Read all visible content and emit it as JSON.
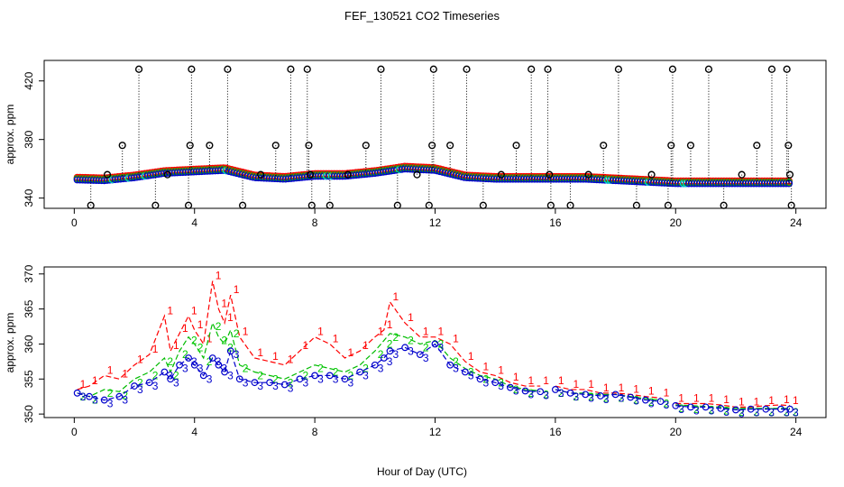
{
  "chart_data": {
    "title": "FEF_130521  CO2 Timeseries",
    "xlabel": "Hour of Day (UTC)",
    "x_ticks": [
      "0",
      "4",
      "8",
      "12",
      "16",
      "20",
      "24"
    ],
    "panels": [
      {
        "type": "scatter",
        "ylabel": "approx. ppm",
        "xlim": [
          -1,
          25
        ],
        "ylim": [
          333,
          434
        ],
        "y_ticks": [
          "340",
          "380",
          "420"
        ],
        "y_tick_values": [
          340,
          380,
          420
        ],
        "baseline_colors": [
          "#ff0000",
          "#00bb00",
          "#0000cc",
          "#00cccc"
        ],
        "baseline_hours": [
          0.1,
          1,
          2,
          3,
          4,
          5,
          6,
          7,
          8,
          9,
          10,
          11,
          12,
          13,
          14,
          15,
          16,
          17,
          18,
          19,
          20,
          21,
          22,
          23,
          23.8
        ],
        "baseline_ppm": [
          352.5,
          352,
          354,
          357,
          358,
          359,
          354,
          353,
          355,
          355,
          357,
          360,
          359,
          354,
          353,
          353,
          353,
          353,
          352,
          351,
          350,
          350,
          350,
          350,
          350
        ],
        "spike_series": {
          "name": "calibration spikes",
          "color": "#000000",
          "points": [
            {
              "x": 0.55,
              "y": 335
            },
            {
              "x": 1.1,
              "y": 356
            },
            {
              "x": 1.6,
              "y": 376
            },
            {
              "x": 2.15,
              "y": 428
            },
            {
              "x": 2.7,
              "y": 335
            },
            {
              "x": 3.1,
              "y": 356
            },
            {
              "x": 3.8,
              "y": 335
            },
            {
              "x": 3.85,
              "y": 376
            },
            {
              "x": 3.9,
              "y": 428
            },
            {
              "x": 4.5,
              "y": 376
            },
            {
              "x": 5.1,
              "y": 428
            },
            {
              "x": 5.6,
              "y": 335
            },
            {
              "x": 6.2,
              "y": 356
            },
            {
              "x": 6.7,
              "y": 376
            },
            {
              "x": 7.2,
              "y": 428
            },
            {
              "x": 7.75,
              "y": 428
            },
            {
              "x": 7.8,
              "y": 376
            },
            {
              "x": 7.85,
              "y": 356
            },
            {
              "x": 7.9,
              "y": 335
            },
            {
              "x": 8.5,
              "y": 335
            },
            {
              "x": 9.1,
              "y": 356
            },
            {
              "x": 9.7,
              "y": 376
            },
            {
              "x": 10.2,
              "y": 428
            },
            {
              "x": 10.75,
              "y": 335
            },
            {
              "x": 11.4,
              "y": 356
            },
            {
              "x": 11.8,
              "y": 335
            },
            {
              "x": 11.9,
              "y": 376
            },
            {
              "x": 11.95,
              "y": 428
            },
            {
              "x": 12.5,
              "y": 376
            },
            {
              "x": 13.05,
              "y": 428
            },
            {
              "x": 13.6,
              "y": 335
            },
            {
              "x": 14.2,
              "y": 356
            },
            {
              "x": 14.7,
              "y": 376
            },
            {
              "x": 15.2,
              "y": 428
            },
            {
              "x": 15.75,
              "y": 428
            },
            {
              "x": 15.8,
              "y": 356
            },
            {
              "x": 15.85,
              "y": 335
            },
            {
              "x": 16.5,
              "y": 335
            },
            {
              "x": 17.1,
              "y": 356
            },
            {
              "x": 17.6,
              "y": 376
            },
            {
              "x": 18.1,
              "y": 428
            },
            {
              "x": 18.7,
              "y": 335
            },
            {
              "x": 19.2,
              "y": 356
            },
            {
              "x": 19.75,
              "y": 335
            },
            {
              "x": 19.85,
              "y": 376
            },
            {
              "x": 19.9,
              "y": 428
            },
            {
              "x": 20.5,
              "y": 376
            },
            {
              "x": 21.1,
              "y": 428
            },
            {
              "x": 21.6,
              "y": 335
            },
            {
              "x": 22.2,
              "y": 356
            },
            {
              "x": 22.7,
              "y": 376
            },
            {
              "x": 23.2,
              "y": 428
            },
            {
              "x": 23.7,
              "y": 428
            },
            {
              "x": 23.75,
              "y": 376
            },
            {
              "x": 23.8,
              "y": 356
            },
            {
              "x": 23.85,
              "y": 335
            }
          ]
        }
      },
      {
        "type": "line",
        "ylabel": "approx. ppm",
        "xlim": [
          -1,
          25
        ],
        "ylim": [
          349.5,
          371
        ],
        "y_ticks": [
          "350",
          "355",
          "360",
          "365",
          "370"
        ],
        "y_tick_values": [
          350,
          355,
          360,
          365,
          370
        ],
        "hours": [
          0.1,
          0.5,
          1,
          1.5,
          2,
          2.5,
          3,
          3.2,
          3.5,
          3.8,
          4,
          4.3,
          4.6,
          4.8,
          5,
          5.2,
          5.5,
          6,
          6.5,
          7,
          7.5,
          8,
          8.5,
          9,
          9.5,
          10,
          10.3,
          10.5,
          11,
          11.5,
          12,
          12.5,
          13,
          13.5,
          14,
          14.5,
          15,
          15.5,
          16,
          16.5,
          17,
          17.5,
          18,
          18.5,
          19,
          19.5,
          20,
          20.5,
          21,
          21.5,
          22,
          22.5,
          23,
          23.5,
          23.8
        ],
        "gap_after_hours": [
          15.7,
          19.7
        ],
        "series": [
          {
            "name": "1",
            "color": "#ff0000",
            "values": [
              353.5,
              354,
              355.5,
              355,
              357,
              358.5,
              364,
              359,
              361.5,
              364,
              362,
              360,
              369,
              365,
              363,
              367,
              361,
              358,
              357.5,
              357,
              359,
              361,
              360,
              358,
              359,
              361,
              362,
              366,
              363,
              361,
              361,
              360,
              357.5,
              356,
              355.5,
              354.5,
              354,
              354,
              354,
              353.5,
              353.5,
              353,
              353,
              352.8,
              352.5,
              352.3,
              351.5,
              351.5,
              351.5,
              351.3,
              351,
              351,
              351.2,
              351.3,
              351.2
            ]
          },
          {
            "name": "2",
            "color": "#00bb00",
            "values": [
              353,
              352.5,
              353.5,
              353.2,
              355,
              356,
              358,
              356,
              359,
              361,
              360,
              358,
              363,
              361,
              360,
              362,
              357,
              356,
              355.5,
              355,
              356,
              357,
              356.5,
              356,
              357,
              359,
              360.5,
              361.5,
              361,
              360,
              360.5,
              358,
              356.5,
              355.5,
              355,
              354,
              353.5,
              353.3,
              353.5,
              353,
              353,
              352.8,
              352.8,
              352.5,
              352.2,
              352,
              351.3,
              351.2,
              351.1,
              351,
              350.8,
              350.8,
              350.8,
              350.8,
              350.8
            ]
          },
          {
            "name": "3",
            "color": "#0000cc",
            "values": [
              353,
              352.5,
              352,
              352.5,
              354,
              354.5,
              356,
              355,
              357,
              358,
              357,
              355.5,
              358,
              357,
              356,
              359,
              355,
              354.5,
              354.5,
              354.2,
              355,
              355.5,
              355.5,
              355,
              356,
              357,
              358,
              359,
              359.5,
              358.5,
              360,
              357,
              356,
              355,
              354.5,
              353.8,
              353.3,
              353.2,
              353.5,
              353,
              352.8,
              352.6,
              352.8,
              352.4,
              352,
              351.8,
              351.2,
              351,
              351,
              350.8,
              350.6,
              350.7,
              350.7,
              350.7,
              350.7
            ]
          }
        ]
      }
    ]
  }
}
